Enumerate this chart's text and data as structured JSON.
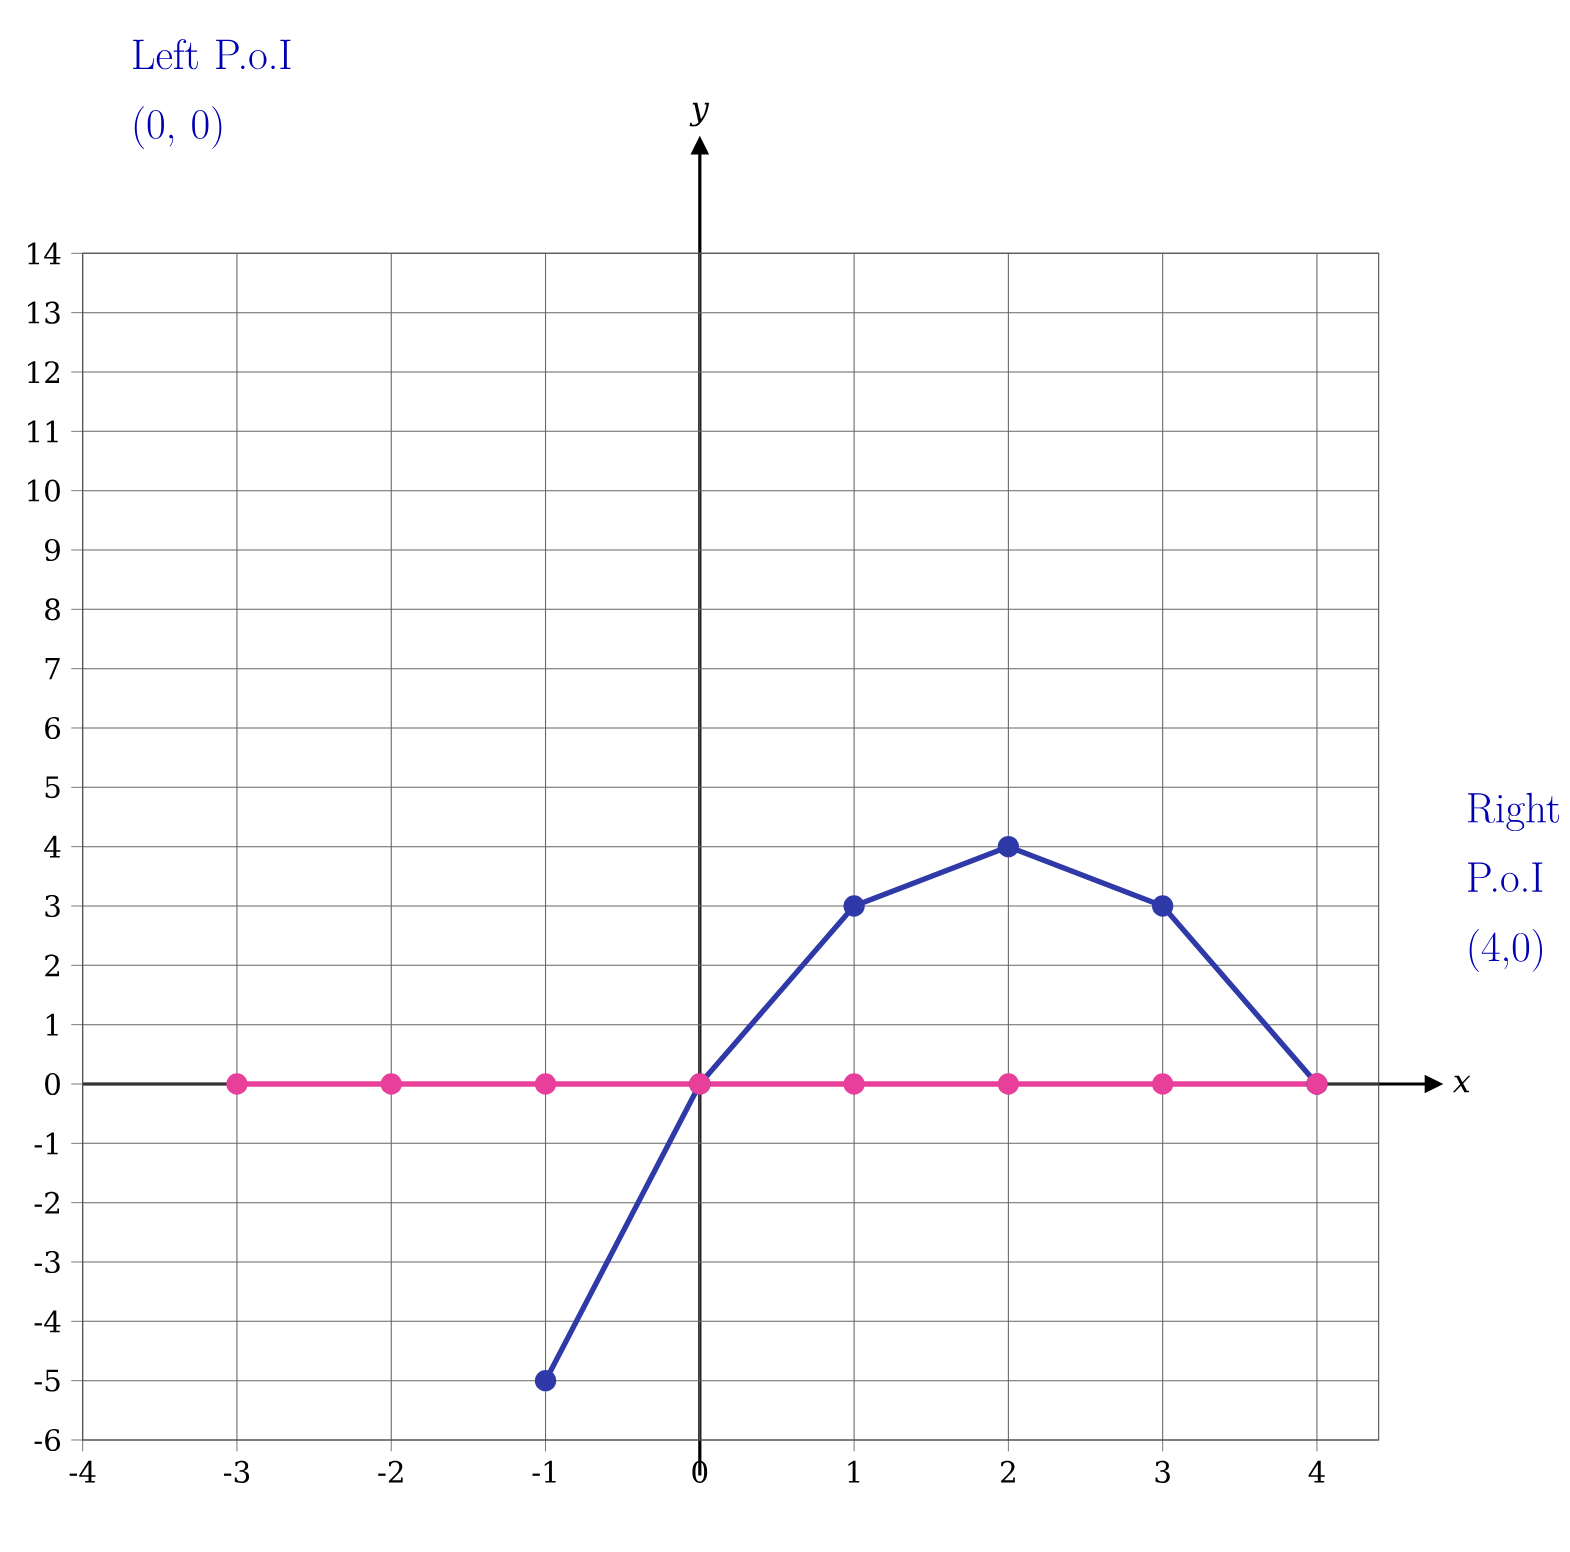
{
  "chart_data": {
    "type": "line",
    "xlabel": "x",
    "ylabel": "y",
    "series": [
      {
        "color": "#2f3aa8",
        "x": [
          -1,
          0,
          1,
          2,
          3,
          4
        ],
        "values": [
          -5,
          0,
          3,
          4,
          3,
          0
        ]
      },
      {
        "color": "#e8409a",
        "x": [
          -3,
          -2,
          -1,
          0,
          1,
          2,
          3,
          4
        ],
        "values": [
          0,
          0,
          0,
          0,
          0,
          0,
          0,
          0
        ]
      }
    ],
    "xlim": [
      -4,
      4.4
    ],
    "ylim": [
      -6,
      14
    ],
    "xticks": [
      -4,
      -3,
      -2,
      -1,
      0,
      1,
      2,
      3,
      4
    ],
    "yticks": [
      -6,
      -5,
      -4,
      -3,
      -2,
      -1,
      0,
      1,
      2,
      3,
      4,
      5,
      6,
      7,
      8,
      9,
      10,
      11,
      12,
      13,
      14
    ],
    "grid": true,
    "marker": "circle",
    "line_style": "solid",
    "annotations": [
      "Left P.o.I (0, 0)",
      "Right P.o.I (4,0)"
    ]
  }
}
